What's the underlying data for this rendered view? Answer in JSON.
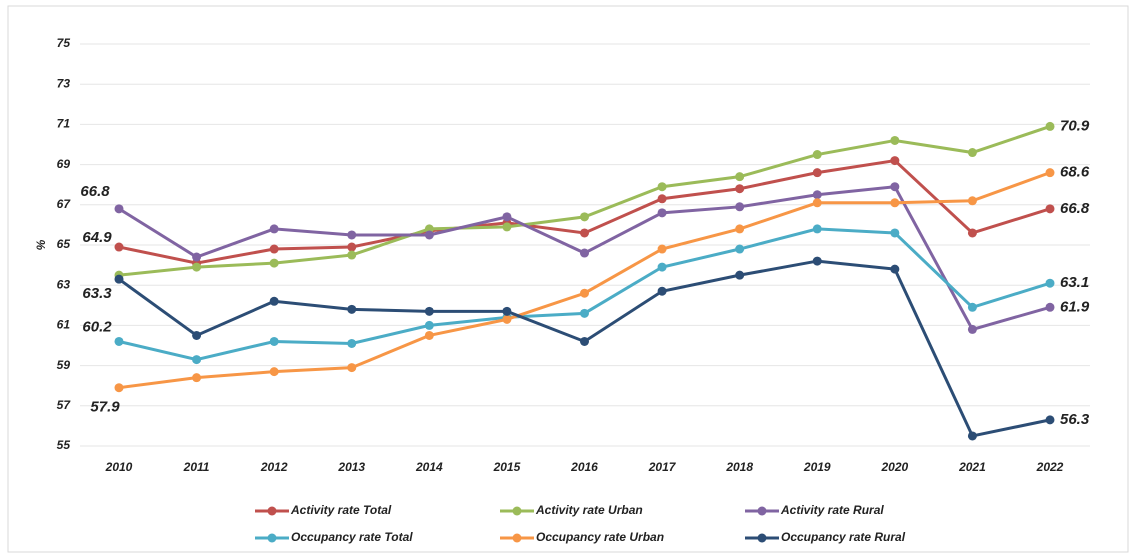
{
  "chart_data": {
    "type": "line",
    "y_label": "%",
    "categories": [
      "2010",
      "2011",
      "2012",
      "2013",
      "2014",
      "2015",
      "2016",
      "2017",
      "2018",
      "2019",
      "2020",
      "2021",
      "2022"
    ],
    "ylim": [
      55,
      75
    ],
    "yticks": [
      55,
      57,
      59,
      61,
      63,
      65,
      67,
      69,
      71,
      73,
      75
    ],
    "grid": true,
    "series": [
      {
        "name": "Activity rate Total",
        "color": "#c0504d",
        "values": [
          64.9,
          64.1,
          64.8,
          64.9,
          65.7,
          66.1,
          65.6,
          67.3,
          67.8,
          68.6,
          69.2,
          65.6,
          66.8
        ],
        "value_labels": [
          "64.9",
          null,
          null,
          null,
          null,
          null,
          null,
          null,
          null,
          null,
          null,
          null,
          "66.8"
        ]
      },
      {
        "name": "Activity rate Urban",
        "color": "#9bbb59",
        "values": [
          63.5,
          63.9,
          64.1,
          64.5,
          65.8,
          65.9,
          66.4,
          67.9,
          68.4,
          69.5,
          70.2,
          69.6,
          70.9
        ],
        "value_labels": [
          null,
          null,
          null,
          null,
          null,
          null,
          null,
          null,
          null,
          null,
          null,
          null,
          "70.9"
        ]
      },
      {
        "name": "Activity rate Rural",
        "color": "#8064a2",
        "values": [
          66.8,
          64.4,
          65.8,
          65.5,
          65.5,
          66.4,
          64.6,
          66.6,
          66.9,
          67.5,
          67.9,
          60.8,
          61.9
        ],
        "value_labels": [
          "66.8",
          null,
          null,
          null,
          null,
          null,
          null,
          null,
          null,
          null,
          null,
          null,
          "61.9"
        ]
      },
      {
        "name": "Occupancy rate Total",
        "color": "#4bacc6",
        "values": [
          60.2,
          59.3,
          60.2,
          60.1,
          61.0,
          61.4,
          61.6,
          63.9,
          64.8,
          65.8,
          65.6,
          61.9,
          63.1
        ],
        "value_labels": [
          "60.2",
          null,
          null,
          null,
          null,
          null,
          null,
          null,
          null,
          null,
          null,
          null,
          "63.1"
        ]
      },
      {
        "name": "Occupancy rate Urban",
        "color": "#f79646",
        "values": [
          57.9,
          58.4,
          58.7,
          58.9,
          60.5,
          61.3,
          62.6,
          64.8,
          65.8,
          67.1,
          67.1,
          67.2,
          68.6
        ],
        "value_labels": [
          "57.9",
          null,
          null,
          null,
          null,
          null,
          null,
          null,
          null,
          null,
          null,
          null,
          "68.6"
        ]
      },
      {
        "name": "Occupancy rate Rural",
        "color": "#2c4d75",
        "values": [
          63.3,
          60.5,
          62.2,
          61.8,
          61.7,
          61.7,
          60.2,
          62.7,
          63.5,
          64.2,
          63.8,
          55.5,
          56.3
        ],
        "value_labels": [
          "63.3",
          null,
          null,
          null,
          null,
          null,
          null,
          null,
          null,
          null,
          null,
          null,
          "56.3"
        ]
      }
    ]
  }
}
